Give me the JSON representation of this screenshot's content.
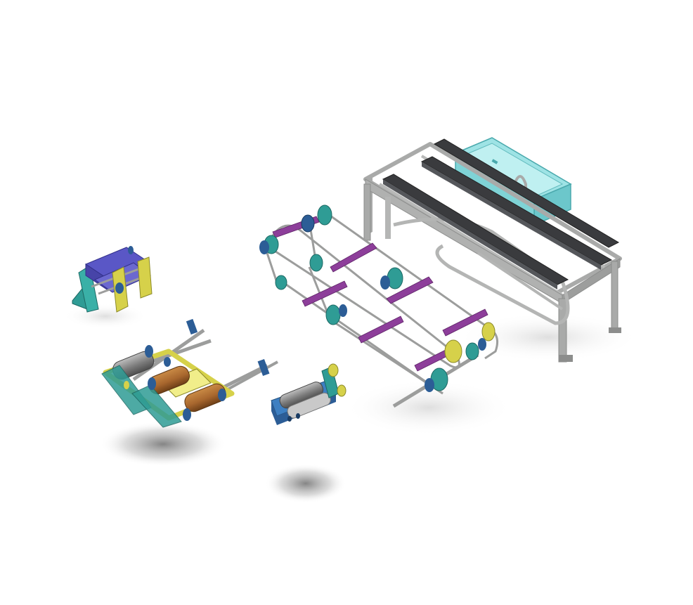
{
  "scene": {
    "background": "#ffffff",
    "colors": {
      "frame_gray": "#a9aaa9",
      "frame_dark": "#8c8d8c",
      "rail_black": "#3a3b3e",
      "tank_cyan": "#7fd3d6",
      "belt_purple": "#8d3e9a",
      "pulley_teal": "#2f9c95",
      "bearing_blue": "#2c5d96",
      "bracket_yellow": "#d6d14a",
      "roller_brown": "#a8672e",
      "roller_gray": "#7b7b7b",
      "block_blue": "#5a57c6",
      "plate_blue": "#3d7fc2",
      "shadow": "#7a7a7a"
    },
    "components": [
      {
        "id": "table-frame",
        "icon": "table-frame-icon"
      },
      {
        "id": "cyan-tank",
        "icon": "tank-icon"
      },
      {
        "id": "conveyor-chain",
        "icon": "conveyor-icon"
      },
      {
        "id": "feed-roller-assembly",
        "icon": "roller-assembly-icon"
      },
      {
        "id": "small-roller-module",
        "icon": "roller-module-icon"
      },
      {
        "id": "clamp-block-assembly",
        "icon": "clamp-block-icon"
      }
    ]
  }
}
